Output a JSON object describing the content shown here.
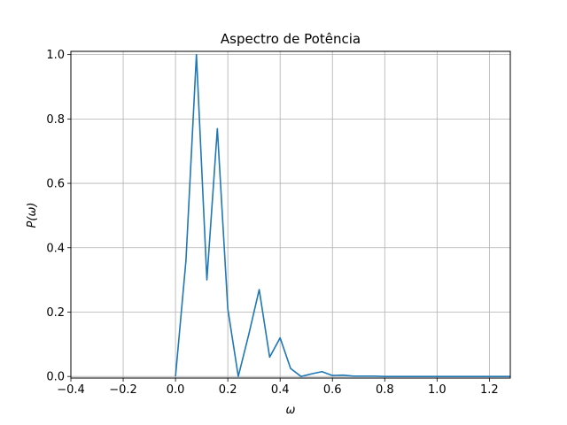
{
  "chart_data": {
    "type": "line",
    "title": "Aspectro de Potência",
    "xlabel": "ω",
    "ylabel": "P(ω)",
    "xlim": [
      -0.4,
      1.28
    ],
    "ylim": [
      -0.005,
      1.01
    ],
    "xticks": [
      -0.4,
      -0.2,
      0.0,
      0.2,
      0.4,
      0.6,
      0.8,
      1.0,
      1.2
    ],
    "xtick_labels": [
      "−0.4",
      "−0.2",
      "0.0",
      "0.2",
      "0.4",
      "0.6",
      "0.8",
      "1.0",
      "1.2"
    ],
    "yticks": [
      0.0,
      0.2,
      0.4,
      0.6,
      0.8,
      1.0
    ],
    "ytick_labels": [
      "0.0",
      "0.2",
      "0.4",
      "0.6",
      "0.8",
      "1.0"
    ],
    "grid": true,
    "line_color": "#1f77b4",
    "series": [
      {
        "x": [
          0.0,
          0.04,
          0.08,
          0.12,
          0.16,
          0.2,
          0.24,
          0.28,
          0.32,
          0.36,
          0.4,
          0.44,
          0.48,
          0.52,
          0.56,
          0.6,
          0.64,
          0.68,
          0.72,
          0.76,
          0.8,
          0.84,
          0.88,
          0.92,
          0.96,
          1.0,
          1.04,
          1.08,
          1.12,
          1.16,
          1.2,
          1.24,
          1.28
        ],
        "y": [
          0.0,
          0.36,
          1.0,
          0.3,
          0.77,
          0.21,
          0.0,
          0.13,
          0.27,
          0.06,
          0.12,
          0.025,
          0.0,
          0.008,
          0.015,
          0.003,
          0.004,
          0.001,
          0.001,
          0.001,
          0.0,
          0.0,
          0.0,
          0.0,
          0.0,
          0.0,
          0.0,
          0.0,
          0.0,
          0.0,
          0.0,
          0.0,
          0.0
        ]
      }
    ]
  }
}
